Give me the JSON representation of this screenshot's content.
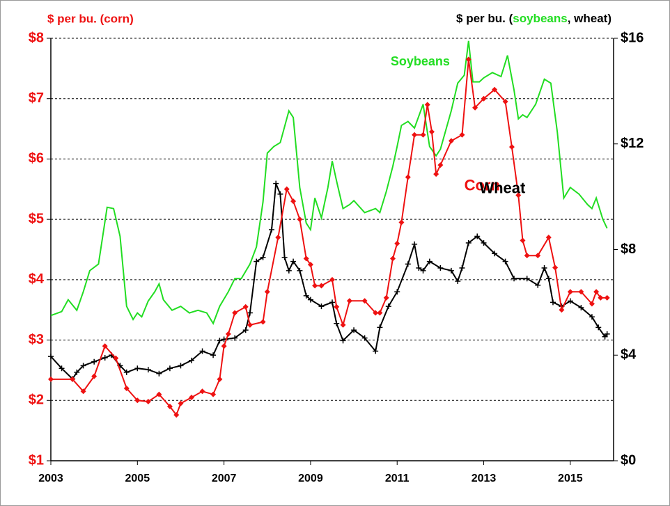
{
  "chart_data": {
    "type": "line",
    "ylabel": "$ per bu. (corn)",
    "y2label": [
      "$ per bu. (",
      "soybeans",
      ", wheat)"
    ],
    "xlim": [
      2003,
      2016
    ],
    "xticks": [
      2003,
      2005,
      2007,
      2009,
      2011,
      2013,
      2015
    ],
    "ylim": [
      1,
      8
    ],
    "yticks": [
      {
        "value": 1,
        "label": "$1"
      },
      {
        "value": 2,
        "label": "$2"
      },
      {
        "value": 3,
        "label": "$3"
      },
      {
        "value": 4,
        "label": "$4"
      },
      {
        "value": 5,
        "label": "$5"
      },
      {
        "value": 6,
        "label": "$6"
      },
      {
        "value": 7,
        "label": "$7"
      },
      {
        "value": 8,
        "label": "$8"
      }
    ],
    "y2lim": [
      0,
      16
    ],
    "y2ticks": [
      {
        "value": 0,
        "label": "$0"
      },
      {
        "value": 4,
        "label": "$4"
      },
      {
        "value": 8,
        "label": "$8"
      },
      {
        "value": 12,
        "label": "$12"
      },
      {
        "value": 16,
        "label": "$16"
      }
    ],
    "grid": true,
    "annotations": [
      {
        "text": "Soybeans",
        "x": 2010.85,
        "y": 15.1,
        "color": "#22dd22"
      },
      {
        "text": "Corn",
        "x": 2012.55,
        "y": 5.55,
        "color": "#ee1111"
      },
      {
        "text": "Wheat",
        "x": 2012.9,
        "y": 5.5,
        "color": "#000000"
      }
    ],
    "series": [
      {
        "name": "Soybeans",
        "color": "#22dd22",
        "axis": "y2",
        "marker": "none",
        "x": [
          2003.0,
          2003.25,
          2003.4,
          2003.6,
          2003.75,
          2003.9,
          2004.1,
          2004.3,
          2004.45,
          2004.6,
          2004.75,
          2004.9,
          2005.0,
          2005.1,
          2005.25,
          2005.4,
          2005.5,
          2005.6,
          2005.8,
          2006.0,
          2006.2,
          2006.4,
          2006.6,
          2006.75,
          2006.9,
          2007.1,
          2007.25,
          2007.4,
          2007.6,
          2007.75,
          2007.9,
          2008.0,
          2008.15,
          2008.3,
          2008.5,
          2008.6,
          2008.75,
          2008.9,
          2009.0,
          2009.1,
          2009.25,
          2009.4,
          2009.5,
          2009.6,
          2009.75,
          2009.9,
          2010.0,
          2010.25,
          2010.5,
          2010.6,
          2010.75,
          2010.9,
          2011.0,
          2011.1,
          2011.25,
          2011.4,
          2011.6,
          2011.75,
          2011.9,
          2012.0,
          2012.25,
          2012.4,
          2012.55,
          2012.65,
          2012.75,
          2012.9,
          2013.0,
          2013.2,
          2013.4,
          2013.55,
          2013.7,
          2013.8,
          2013.9,
          2014.0,
          2014.2,
          2014.4,
          2014.55,
          2014.7,
          2014.85,
          2015.0,
          2015.2,
          2015.4,
          2015.5,
          2015.6,
          2015.75,
          2015.85
        ],
        "values": [
          5.5,
          5.65,
          6.1,
          5.7,
          6.4,
          7.2,
          7.45,
          9.6,
          9.55,
          8.5,
          5.85,
          5.35,
          5.6,
          5.45,
          6.05,
          6.4,
          6.7,
          6.1,
          5.7,
          5.85,
          5.6,
          5.7,
          5.6,
          5.2,
          5.85,
          6.4,
          6.9,
          6.9,
          7.45,
          8.1,
          9.8,
          11.65,
          11.9,
          12.05,
          13.25,
          13.0,
          10.35,
          9.0,
          8.75,
          9.95,
          9.2,
          10.35,
          11.35,
          10.6,
          9.55,
          9.7,
          9.85,
          9.4,
          9.55,
          9.4,
          10.2,
          11.15,
          11.9,
          12.7,
          12.85,
          12.6,
          13.5,
          11.9,
          11.55,
          11.8,
          13.25,
          14.3,
          14.6,
          15.9,
          14.35,
          14.35,
          14.5,
          14.7,
          14.55,
          15.35,
          14.05,
          12.95,
          13.1,
          13.0,
          13.5,
          14.45,
          14.3,
          12.45,
          9.95,
          10.35,
          10.1,
          9.7,
          9.55,
          9.95,
          9.15,
          8.8
        ]
      },
      {
        "name": "Wheat",
        "color": "#000000",
        "axis": "y2",
        "marker": "plus",
        "x": [
          2003.0,
          2003.25,
          2003.5,
          2003.6,
          2003.75,
          2004.0,
          2004.25,
          2004.4,
          2004.6,
          2004.75,
          2005.0,
          2005.25,
          2005.5,
          2005.75,
          2006.0,
          2006.25,
          2006.5,
          2006.75,
          2006.9,
          2007.0,
          2007.25,
          2007.5,
          2007.6,
          2007.75,
          2007.9,
          2008.1,
          2008.2,
          2008.3,
          2008.4,
          2008.5,
          2008.6,
          2008.75,
          2008.9,
          2009.0,
          2009.25,
          2009.5,
          2009.6,
          2009.75,
          2010.0,
          2010.25,
          2010.5,
          2010.6,
          2010.8,
          2011.0,
          2011.25,
          2011.4,
          2011.5,
          2011.6,
          2011.75,
          2012.0,
          2012.25,
          2012.4,
          2012.5,
          2012.65,
          2012.85,
          2013.0,
          2013.25,
          2013.5,
          2013.7,
          2014.0,
          2014.25,
          2014.4,
          2014.5,
          2014.6,
          2014.8,
          2015.0,
          2015.25,
          2015.5,
          2015.65,
          2015.8,
          2015.85
        ],
        "values": [
          3.95,
          3.5,
          3.1,
          3.35,
          3.6,
          3.75,
          3.9,
          4.0,
          3.6,
          3.35,
          3.5,
          3.45,
          3.3,
          3.5,
          3.6,
          3.8,
          4.15,
          4.0,
          4.55,
          4.6,
          4.65,
          4.95,
          5.6,
          7.55,
          7.7,
          8.75,
          10.5,
          10.1,
          7.7,
          7.2,
          7.55,
          7.2,
          6.25,
          6.1,
          5.85,
          6.0,
          5.2,
          4.55,
          4.95,
          4.65,
          4.15,
          5.05,
          5.85,
          6.4,
          7.45,
          8.2,
          7.3,
          7.2,
          7.55,
          7.3,
          7.2,
          6.8,
          7.3,
          8.25,
          8.5,
          8.25,
          7.85,
          7.55,
          6.9,
          6.9,
          6.65,
          7.3,
          6.9,
          6.0,
          5.85,
          6.05,
          5.8,
          5.45,
          5.05,
          4.7,
          4.8
        ]
      },
      {
        "name": "Corn",
        "color": "#ee1111",
        "axis": "y",
        "marker": "diamond",
        "x": [
          2003.0,
          2003.5,
          2003.75,
          2004.0,
          2004.25,
          2004.5,
          2004.75,
          2005.0,
          2005.25,
          2005.5,
          2005.75,
          2005.9,
          2006.0,
          2006.25,
          2006.5,
          2006.75,
          2006.9,
          2007.0,
          2007.1,
          2007.25,
          2007.5,
          2007.6,
          2007.9,
          2008.0,
          2008.25,
          2008.45,
          2008.6,
          2008.75,
          2008.9,
          2009.0,
          2009.1,
          2009.25,
          2009.5,
          2009.6,
          2009.75,
          2009.9,
          2010.25,
          2010.5,
          2010.6,
          2010.75,
          2010.9,
          2011.0,
          2011.1,
          2011.25,
          2011.4,
          2011.6,
          2011.7,
          2011.8,
          2011.9,
          2012.0,
          2012.25,
          2012.5,
          2012.65,
          2012.8,
          2013.0,
          2013.25,
          2013.5,
          2013.65,
          2013.8,
          2013.9,
          2014.0,
          2014.25,
          2014.5,
          2014.65,
          2014.8,
          2015.0,
          2015.25,
          2015.5,
          2015.6,
          2015.7,
          2015.85
        ],
        "values": [
          2.35,
          2.35,
          2.15,
          2.4,
          2.9,
          2.7,
          2.2,
          2.0,
          1.98,
          2.1,
          1.9,
          1.76,
          1.95,
          2.05,
          2.15,
          2.1,
          2.35,
          2.9,
          3.1,
          3.45,
          3.55,
          3.25,
          3.3,
          3.8,
          4.7,
          5.5,
          5.3,
          5.0,
          4.35,
          4.25,
          3.9,
          3.9,
          4.0,
          3.55,
          3.25,
          3.65,
          3.65,
          3.45,
          3.45,
          3.7,
          4.35,
          4.6,
          4.95,
          5.7,
          6.4,
          6.4,
          6.9,
          6.45,
          5.75,
          5.9,
          6.3,
          6.4,
          7.65,
          6.85,
          7.0,
          7.15,
          6.95,
          6.2,
          5.4,
          4.65,
          4.4,
          4.4,
          4.7,
          4.2,
          3.5,
          3.8,
          3.8,
          3.6,
          3.8,
          3.7,
          3.7
        ]
      }
    ]
  }
}
